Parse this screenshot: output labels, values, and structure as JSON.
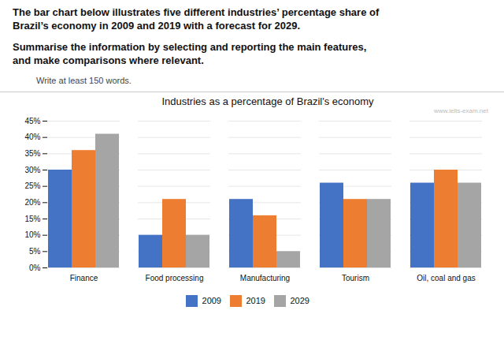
{
  "chart_data": {
    "type": "bar",
    "title": "Industries as a percentage of Brazil's economy",
    "annotations": [
      "The bar chart below illustrates five different industries’ percentage share of\nBrazil’s economy in 2009 and 2019 with a forecast for 2029.",
      "Summarise the information by selecting and reporting the main features,\nand make comparisons where relevant.",
      "Write at least 150 words.",
      "www.ielts-exam.net"
    ],
    "categories": [
      "Finance",
      "Food processing",
      "Manufacturing",
      "Tourism",
      "Oil, coal and gas"
    ],
    "series": [
      {
        "name": "2009",
        "color": "#4472C4",
        "values": [
          30,
          10,
          21,
          26,
          26
        ]
      },
      {
        "name": "2019",
        "color": "#ED7D31",
        "values": [
          36,
          21,
          16,
          21,
          30
        ]
      },
      {
        "name": "2029",
        "color": "#A5A5A5",
        "values": [
          41,
          10,
          5,
          21,
          26
        ]
      }
    ],
    "ylim": [
      0,
      45
    ],
    "yticks": [
      {
        "value": 0,
        "label": "0%"
      },
      {
        "value": 5,
        "label": "5%"
      },
      {
        "value": 10,
        "label": "10%"
      },
      {
        "value": 15,
        "label": "15%"
      },
      {
        "value": 20,
        "label": "20%"
      },
      {
        "value": 25,
        "label": "25%"
      },
      {
        "value": 30,
        "label": "30%"
      },
      {
        "value": 35,
        "label": "35%"
      },
      {
        "value": 40,
        "label": "40%"
      },
      {
        "value": 45,
        "label": "45%"
      }
    ],
    "grid": true,
    "legend": "bottom"
  }
}
